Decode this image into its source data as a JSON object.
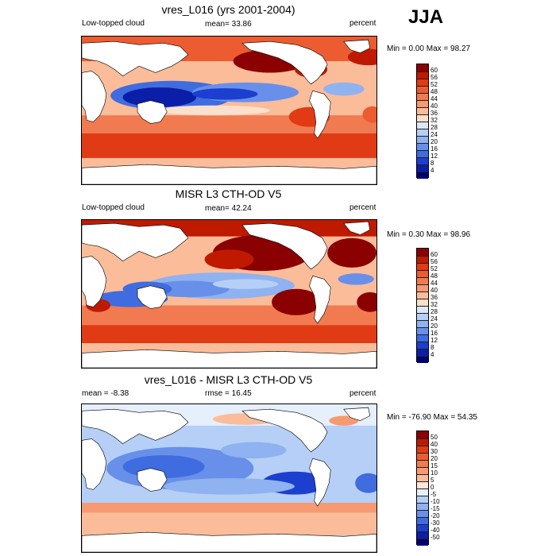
{
  "season": "JJA",
  "panels": [
    {
      "title": "vres_L016 (yrs 2001-2004)",
      "left_label": "Low-topped cloud",
      "mean_text": "mean=  33.86",
      "rmse_text": "",
      "units": "percent",
      "minmax": "Min =   0.00 Max =  98.27",
      "levels": [
        "60",
        "56",
        "52",
        "48",
        "44",
        "40",
        "36",
        "32",
        "28",
        "24",
        "20",
        "16",
        "12",
        "8",
        "4"
      ],
      "colors": [
        "#8b0000",
        "#bf1a00",
        "#e03b14",
        "#ec5c30",
        "#f27a50",
        "#f79a72",
        "#fbbc9a",
        "#fde0cc",
        "#dbe8fb",
        "#b6cff7",
        "#8fb2f0",
        "#6890ea",
        "#3f6cdf",
        "#1c3fcf",
        "#0a1ea8",
        "#00006e"
      ]
    },
    {
      "title": "MISR L3 CTH-OD V5",
      "left_label": "Low-topped cloud",
      "mean_text": "mean=  42.24",
      "rmse_text": "",
      "units": "percent",
      "minmax": "Min =   0.30 Max =  98.96",
      "levels": [
        "60",
        "56",
        "52",
        "48",
        "44",
        "40",
        "36",
        "32",
        "28",
        "24",
        "20",
        "16",
        "12",
        "8",
        "4"
      ],
      "colors": [
        "#8b0000",
        "#bf1a00",
        "#e03b14",
        "#ec5c30",
        "#f27a50",
        "#f79a72",
        "#fbbc9a",
        "#fde0cc",
        "#dbe8fb",
        "#b6cff7",
        "#8fb2f0",
        "#6890ea",
        "#3f6cdf",
        "#1c3fcf",
        "#0a1ea8",
        "#00006e"
      ]
    },
    {
      "title": "vres_L016 - MISR L3 CTH-OD V5",
      "left_label": "",
      "mean_text": "mean =  -8.38",
      "rmse_text": "rmse =  16.45",
      "units": "percent",
      "minmax": "Min = -76.90 Max =  54.35",
      "levels": [
        "50",
        "40",
        "30",
        "20",
        "15",
        "10",
        "5",
        "0",
        "-5",
        "-10",
        "-15",
        "-20",
        "-30",
        "-40",
        "-50"
      ],
      "colors": [
        "#8b0000",
        "#bf1a00",
        "#e03b14",
        "#ec5c30",
        "#f27a50",
        "#f79a72",
        "#fbbc9a",
        "#fde6d8",
        "#e6effc",
        "#b6cff7",
        "#8fb2f0",
        "#6890ea",
        "#3f6cdf",
        "#1c3fcf",
        "#0a1ea8",
        "#00006e"
      ]
    }
  ]
}
